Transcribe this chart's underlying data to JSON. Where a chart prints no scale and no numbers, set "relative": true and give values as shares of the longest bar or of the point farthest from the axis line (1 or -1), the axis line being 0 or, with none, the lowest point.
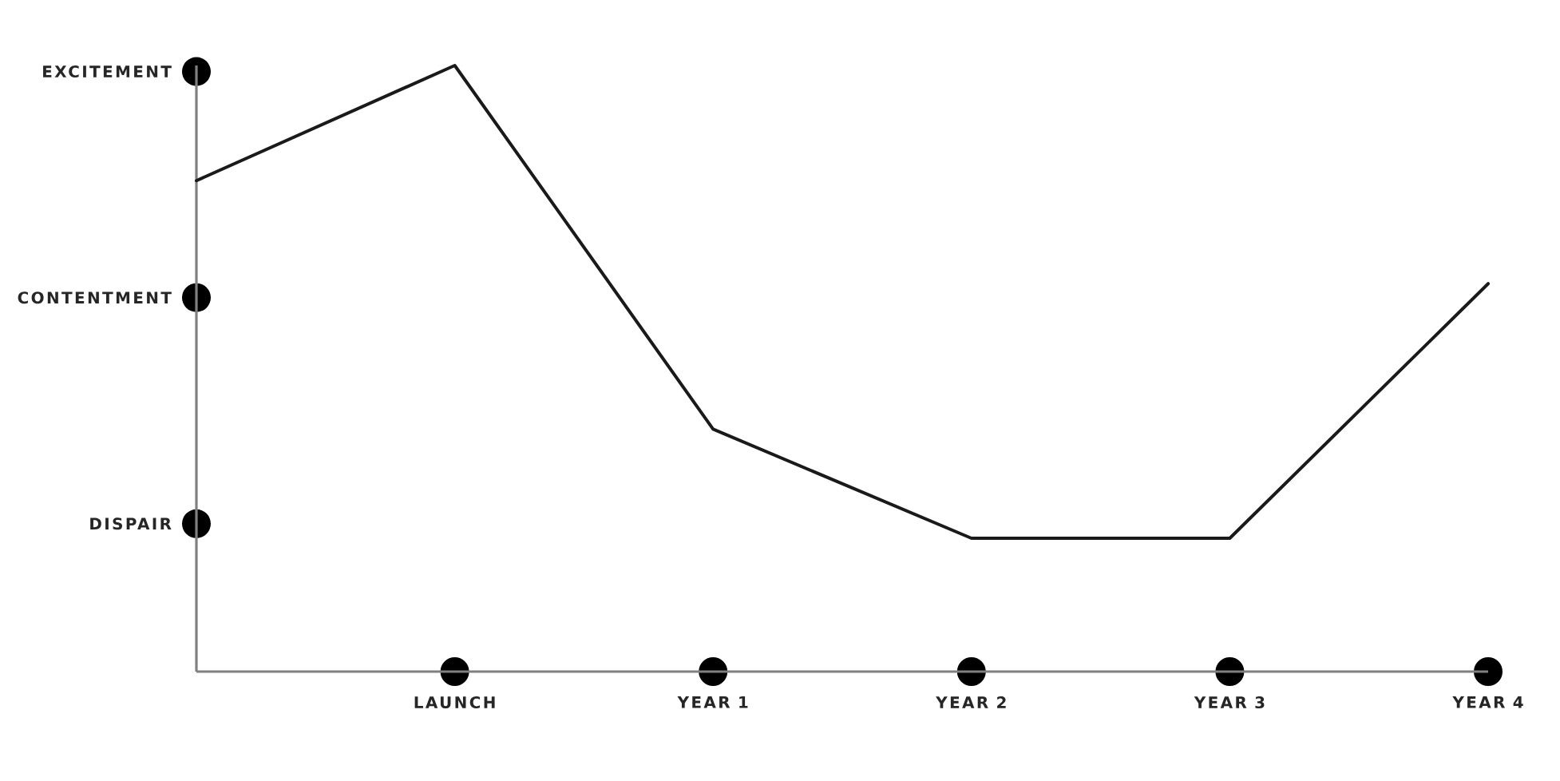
{
  "chart_data": {
    "type": "line",
    "categories": [
      null,
      "LAUNCH",
      "YEAR 1",
      "YEAR 2",
      "YEAR 3",
      "YEAR 4"
    ],
    "values": [
      0.81,
      1,
      0.4,
      0.22,
      0.22,
      0.64
    ],
    "color": "#1a1a1a",
    "relative": true,
    "annotations": [
      "EXCITEMENT",
      "CONTENTMENT",
      "DISPAIR"
    ],
    "marker": "none",
    "line_style": "solid"
  }
}
